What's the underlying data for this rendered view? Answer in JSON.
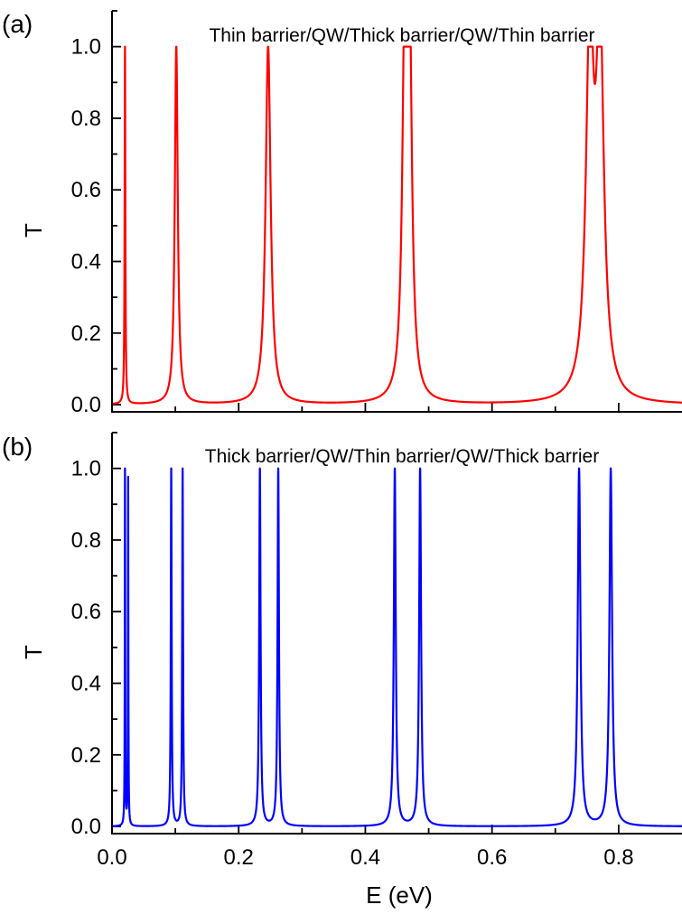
{
  "chart_data": [
    {
      "type": "line",
      "panel_label": "(a)",
      "title": "Thin barrier/QW/Thick barrier/QW/Thin barrier",
      "xlabel": "",
      "ylabel": "T",
      "xlim": [
        0.0,
        0.9
      ],
      "ylim": [
        -0.02,
        1.1
      ],
      "x_ticks": [
        0.0,
        0.2,
        0.4,
        0.6,
        0.8
      ],
      "y_ticks": [
        0.0,
        0.2,
        0.4,
        0.6,
        0.8,
        1.0
      ],
      "y_tick_labels": [
        "0.0",
        "0.2",
        "0.4",
        "0.6",
        "0.8",
        "1.0"
      ],
      "show_x_tick_labels": false,
      "grid": false,
      "color": "#ff0000",
      "resonances": [
        {
          "E": 0.0205,
          "T": 1.0,
          "width": 0.0007
        },
        {
          "E": 0.1015,
          "T": 1.0,
          "width": 0.0028
        },
        {
          "E": 0.2465,
          "T": 1.0,
          "width": 0.0048
        },
        {
          "E": 0.4625,
          "T": 1.0,
          "width": 0.0045
        },
        {
          "E": 0.4695,
          "T": 1.0,
          "width": 0.0045
        },
        {
          "E": 0.7545,
          "T": 1.0,
          "width": 0.0072
        },
        {
          "E": 0.7705,
          "T": 1.0,
          "width": 0.0072
        }
      ]
    },
    {
      "type": "line",
      "panel_label": "(b)",
      "title": "Thick barrier/QW/Thin barrier/QW/Thick barrier",
      "xlabel": "E (eV)",
      "ylabel": "T",
      "xlim": [
        0.0,
        0.9
      ],
      "ylim": [
        -0.02,
        1.1
      ],
      "x_ticks": [
        0.0,
        0.2,
        0.4,
        0.6,
        0.8
      ],
      "x_tick_labels": [
        "0.0",
        "0.2",
        "0.4",
        "0.6",
        "0.8"
      ],
      "y_ticks": [
        0.0,
        0.2,
        0.4,
        0.6,
        0.8,
        1.0
      ],
      "y_tick_labels": [
        "0.0",
        "0.2",
        "0.4",
        "0.6",
        "0.8",
        "1.0"
      ],
      "show_x_tick_labels": true,
      "grid": false,
      "color": "#0000ff",
      "resonances": [
        {
          "E": 0.0205,
          "T": 1.0,
          "width": 0.0004
        },
        {
          "E": 0.0255,
          "T": 0.97,
          "width": 0.0004
        },
        {
          "E": 0.0935,
          "T": 1.0,
          "width": 0.0008
        },
        {
          "E": 0.1115,
          "T": 1.0,
          "width": 0.0008
        },
        {
          "E": 0.2335,
          "T": 1.0,
          "width": 0.0013
        },
        {
          "E": 0.2625,
          "T": 1.0,
          "width": 0.0013
        },
        {
          "E": 0.4465,
          "T": 1.0,
          "width": 0.0018
        },
        {
          "E": 0.4865,
          "T": 1.0,
          "width": 0.0018
        },
        {
          "E": 0.7375,
          "T": 1.0,
          "width": 0.0025
        },
        {
          "E": 0.7875,
          "T": 1.0,
          "width": 0.0025
        }
      ]
    }
  ]
}
